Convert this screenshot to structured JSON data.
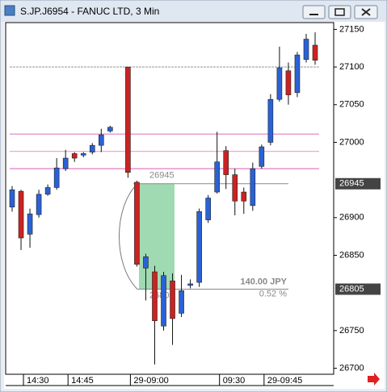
{
  "window": {
    "title": "S.JP.J6954 - FANUC LTD, 3 Min"
  },
  "chart_data": {
    "type": "candlestick",
    "categories": [
      null,
      "14:30",
      null,
      null,
      null,
      null,
      "14:45",
      null,
      null,
      null,
      null,
      null,
      null,
      "29-09:00",
      null,
      null,
      null,
      null,
      null,
      null,
      null,
      null,
      null,
      "09:30",
      null,
      null,
      null,
      null,
      "29-09:45",
      null,
      null,
      null,
      null,
      null,
      null
    ],
    "series": [
      {
        "up_color": "#2a62d6",
        "down_color": "#cc2222",
        "open": [
          26914,
          26935,
          26878,
          26904,
          26931,
          26940,
          26965,
          26985,
          26983,
          26987,
          26996,
          27015,
          null,
          27100,
          26947,
          26833,
          26828,
          26756,
          26816,
          26773,
          26810,
          26814,
          26897,
          26934,
          26989,
          26957,
          26934,
          26916,
          26968,
          27000,
          27057,
          27095,
          27066,
          27110,
          27129
        ],
        "high": [
          26942,
          26937,
          26912,
          26937,
          26944,
          26979,
          26990,
          26987,
          26987,
          26999,
          27018,
          27022,
          null,
          27100,
          26949,
          26852,
          26836,
          26828,
          26826,
          26824,
          26818,
          26912,
          26930,
          27014,
          26995,
          26965,
          26940,
          26973,
          26997,
          27064,
          27127,
          27106,
          27120,
          27144,
          27146
        ],
        "low": [
          26908,
          26857,
          26860,
          26900,
          26929,
          26937,
          26962,
          26974,
          26980,
          26984,
          26987,
          27013,
          null,
          26953,
          26835,
          26790,
          26705,
          26750,
          26731,
          26768,
          26806,
          26808,
          26893,
          26932,
          26938,
          26903,
          26905,
          26909,
          26965,
          26996,
          27054,
          27050,
          27060,
          27106,
          27103
        ],
        "close": [
          26937,
          26873,
          26905,
          26931,
          26940,
          26966,
          26979,
          26979,
          26985,
          26996,
          27010,
          27020,
          null,
          26960,
          26838,
          26848,
          26763,
          26823,
          26766,
          26803,
          26812,
          26908,
          26926,
          26974,
          26957,
          26922,
          26922,
          26965,
          26994,
          27057,
          27099,
          27063,
          27116,
          27137,
          27109
        ]
      }
    ],
    "ylim": [
      26692,
      27159
    ],
    "yticks": [
      26700,
      26750,
      26850,
      26900,
      27000,
      27050,
      27100,
      27150
    ],
    "levels": [
      {
        "value": 27100,
        "color": "#a0a0a0"
      },
      {
        "value": 27011,
        "color": "#e27cc4"
      },
      {
        "value": 26988,
        "color": "#f2a6cf"
      },
      {
        "value": 26965,
        "color": "#e27cc4"
      }
    ],
    "axis_price_labels": [
      26945,
      26805
    ],
    "measure": {
      "from": 26945,
      "to": 26805,
      "difference": "140.00 JPY",
      "percent": "0.52 %",
      "color": "#8fd4a6"
    }
  }
}
